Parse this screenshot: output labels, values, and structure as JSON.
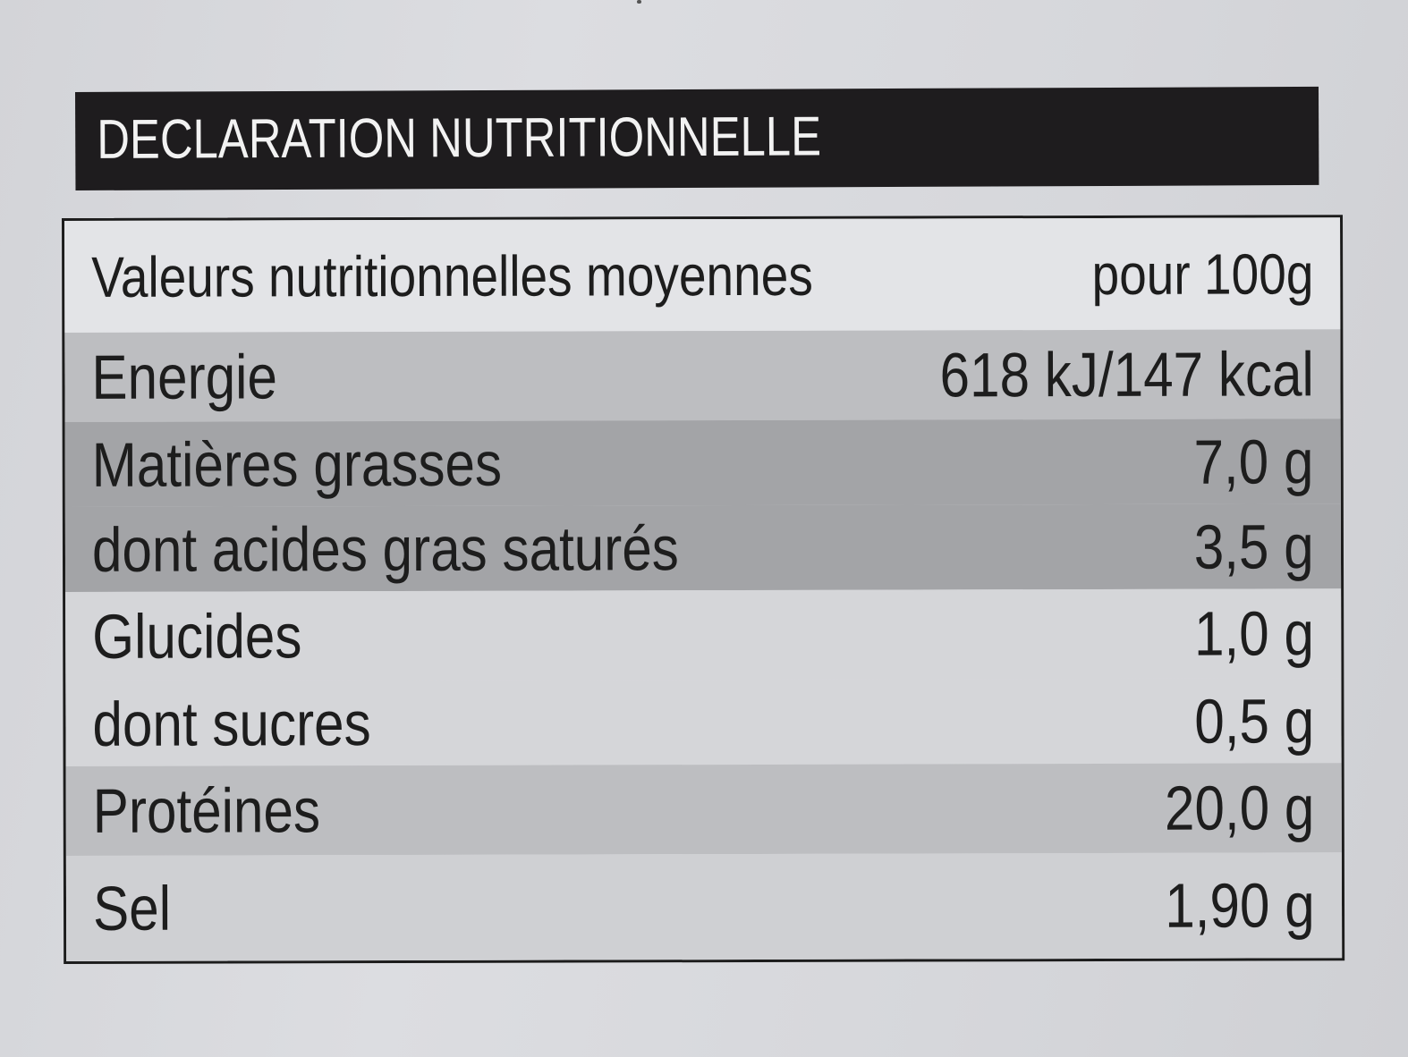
{
  "title": "DECLARATION NUTRITIONNELLE",
  "table": {
    "header": {
      "label": "Valeurs nutritionnelles moyennes",
      "value": "pour 100g"
    },
    "rows": [
      {
        "label": "Energie",
        "value": "618 kJ/147 kcal"
      },
      {
        "label": "Matières grasses",
        "value": "7,0 g"
      },
      {
        "label": "dont acides gras saturés",
        "value": "3,5 g"
      },
      {
        "label": "Glucides",
        "value": "1,0 g"
      },
      {
        "label": "dont sucres",
        "value": "0,5 g"
      },
      {
        "label": "Protéines",
        "value": "20,0 g"
      },
      {
        "label": "Sel",
        "value": "1,90 g"
      }
    ]
  },
  "colors": {
    "background": "#d8d9dd",
    "header_band": "#1e1c1e",
    "header_text": "#f2f2f2",
    "row_light": "#e3e4e7",
    "row_mid": "#bdbec1",
    "row_dark": "#a3a4a7",
    "text": "#1d1d1d"
  }
}
